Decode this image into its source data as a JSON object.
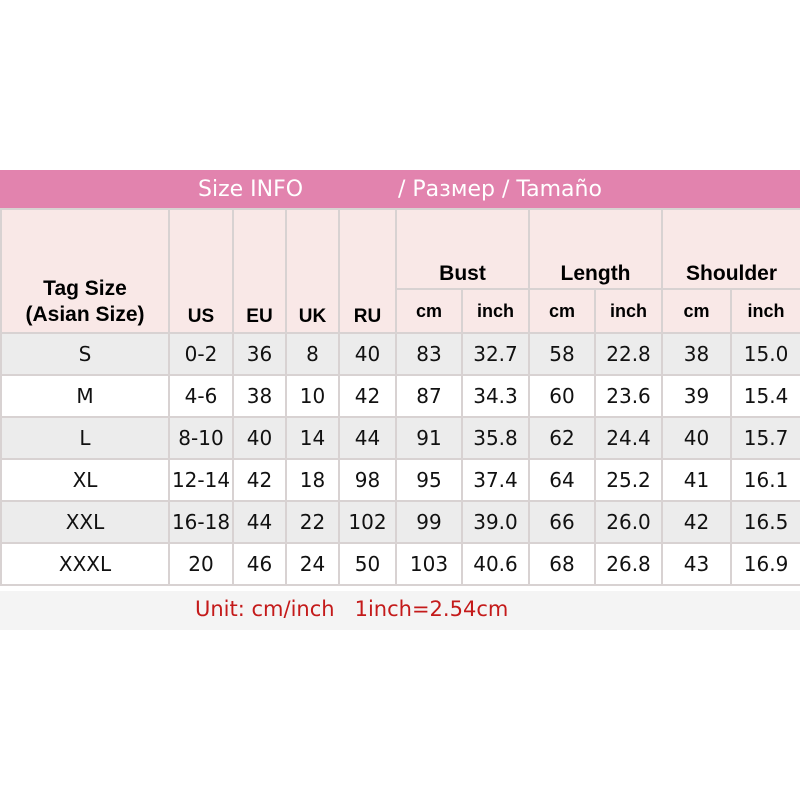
{
  "title": {
    "part1": "Size INFO",
    "part2": "/  Размер  /  Tamaño"
  },
  "headers": {
    "tag_size": "Tag Size",
    "tag_size_sub": "(Asian Size)",
    "us": "US",
    "eu": "EU",
    "uk": "UK",
    "ru": "RU",
    "bust": "Bust",
    "length": "Length",
    "shoulder": "Shoulder",
    "cm": "cm",
    "inch": "inch"
  },
  "rows": [
    [
      "S",
      "0-2",
      "36",
      "8",
      "40",
      "83",
      "32.7",
      "58",
      "22.8",
      "38",
      "15.0"
    ],
    [
      "M",
      "4-6",
      "38",
      "10",
      "42",
      "87",
      "34.3",
      "60",
      "23.6",
      "39",
      "15.4"
    ],
    [
      "L",
      "8-10",
      "40",
      "14",
      "44",
      "91",
      "35.8",
      "62",
      "24.4",
      "40",
      "15.7"
    ],
    [
      "XL",
      "12-14",
      "42",
      "18",
      "98",
      "95",
      "37.4",
      "64",
      "25.2",
      "41",
      "16.1"
    ],
    [
      "XXL",
      "16-18",
      "44",
      "22",
      "102",
      "99",
      "39.0",
      "66",
      "26.0",
      "42",
      "16.5"
    ],
    [
      "XXXL",
      "20",
      "46",
      "24",
      "50",
      "103",
      "40.6",
      "68",
      "26.8",
      "43",
      "16.9"
    ]
  ],
  "footer": "Unit: cm/inch   1inch=2.54cm",
  "colors": {
    "title_bar": "#e283ae",
    "header_bg": "#f9e8e7",
    "row_alt": "#ececec",
    "footer_text": "#c41a1a"
  }
}
